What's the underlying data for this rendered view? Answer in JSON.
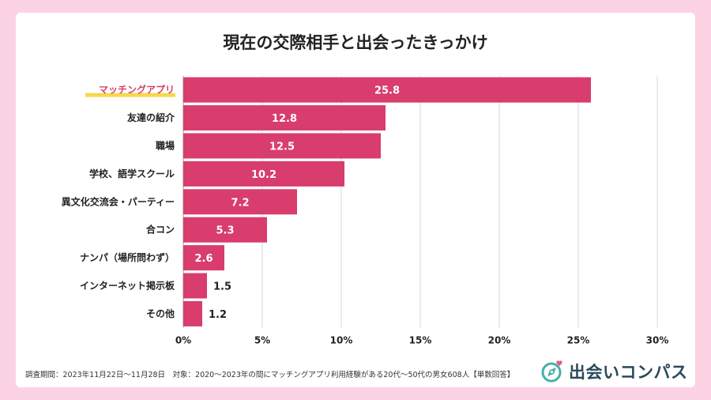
{
  "chart_data": {
    "type": "bar",
    "orientation": "horizontal",
    "title": "現在の交際相手と出会ったきっかけ",
    "categories": [
      "マッチングアプリ",
      "友達の紹介",
      "職場",
      "学校、語学スクール",
      "異文化交流会・パーティー",
      "合コン",
      "ナンパ（場所問わず）",
      "インターネット掲示板",
      "その他"
    ],
    "values": [
      25.8,
      12.8,
      12.5,
      10.2,
      7.2,
      5.3,
      2.6,
      1.5,
      1.2
    ],
    "value_labels": [
      "25.8",
      "12.8",
      "12.5",
      "10.2",
      "7.2",
      "5.3",
      "2.6",
      "1.5",
      "1.2"
    ],
    "xlim": [
      0,
      30
    ],
    "x_ticks": [
      0,
      5,
      10,
      15,
      20,
      25,
      30
    ],
    "x_tick_labels": [
      "0%",
      "5%",
      "10%",
      "15%",
      "20%",
      "25%",
      "30%"
    ],
    "grid": "vertical",
    "highlight_category": "マッチングアプリ",
    "colors": {
      "bar": "#d83d6e",
      "highlight_underline": "#f6d94c",
      "highlight_text": "#d83d6e",
      "grid": "#d9d9d9"
    }
  },
  "footer": {
    "note": "調査期間：2023年11月22日～11月28日　対象：2020～2023年の間にマッチングアプリ利用経験がある20代～50代の男女608人【単数回答】"
  },
  "brand": {
    "name": "出会いコンパス",
    "icon": "compass-heart-icon",
    "colors": {
      "ring": "#46b0a8",
      "heart": "#e85a85",
      "text": "#2a4a5a"
    }
  }
}
